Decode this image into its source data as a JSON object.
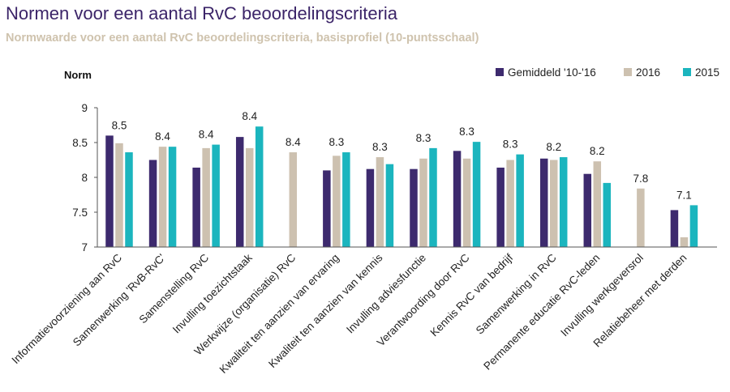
{
  "title": "Normen voor een aantal RvC beoordelingscriteria",
  "subtitle": "Normwaarde voor een aantal RvC beoordelingscriteria, basisprofiel (10-puntsschaal)",
  "colors": {
    "title": "#3b2468",
    "subtitle": "#cfc3ae",
    "axis": "#555555"
  },
  "chart_data": {
    "type": "bar",
    "ylabel": "Norm",
    "ylim": [
      7,
      9
    ],
    "yticks": [
      "7",
      "7.5",
      "8",
      "8.5",
      "9"
    ],
    "grid": false,
    "legend": "top-right",
    "categories": [
      "Informatievoorziening aan RvC",
      "Samenwerking 'RvB-RvC'",
      "Samenstelling RvC",
      "Invulling toezichtstaak",
      "Werkwijze (organisatie) RvC",
      "Kwaliteit ten aanzien van ervaring",
      "Kwaliteit ten aanzien van kennis",
      "Invulling adviesfunctie",
      "Verantwoording door RvC",
      "Kennis RvC van bedrijf",
      "Samenwerking in RvC",
      "Permanente educatie RvC-leden",
      "Invulling werkgeversrol",
      "Relatiebeheer met derden"
    ],
    "series": [
      {
        "name": "Gemiddeld '10-'16",
        "color": "#3d2a6e",
        "values": [
          8.6,
          8.25,
          8.14,
          8.58,
          null,
          8.1,
          8.12,
          8.12,
          8.38,
          8.14,
          8.27,
          8.05,
          null,
          7.53
        ]
      },
      {
        "name": "2016",
        "color": "#cdc1b0",
        "values": [
          8.49,
          8.44,
          8.42,
          8.42,
          8.36,
          8.31,
          8.29,
          8.27,
          8.27,
          8.25,
          8.25,
          8.23,
          7.84,
          7.14
        ]
      },
      {
        "name": "2015",
        "color": "#1bb5be",
        "values": [
          8.36,
          8.44,
          8.47,
          8.73,
          null,
          8.36,
          8.19,
          8.42,
          8.51,
          8.33,
          8.29,
          7.92,
          null,
          7.6
        ]
      }
    ],
    "data_labels": [
      "8.5",
      "8.4",
      "8.4",
      "8.4",
      "8.4",
      "8.3",
      "8.3",
      "8.3",
      "8.3",
      "8.3",
      "8.2",
      "8.2",
      "7.8",
      "7.1"
    ]
  }
}
